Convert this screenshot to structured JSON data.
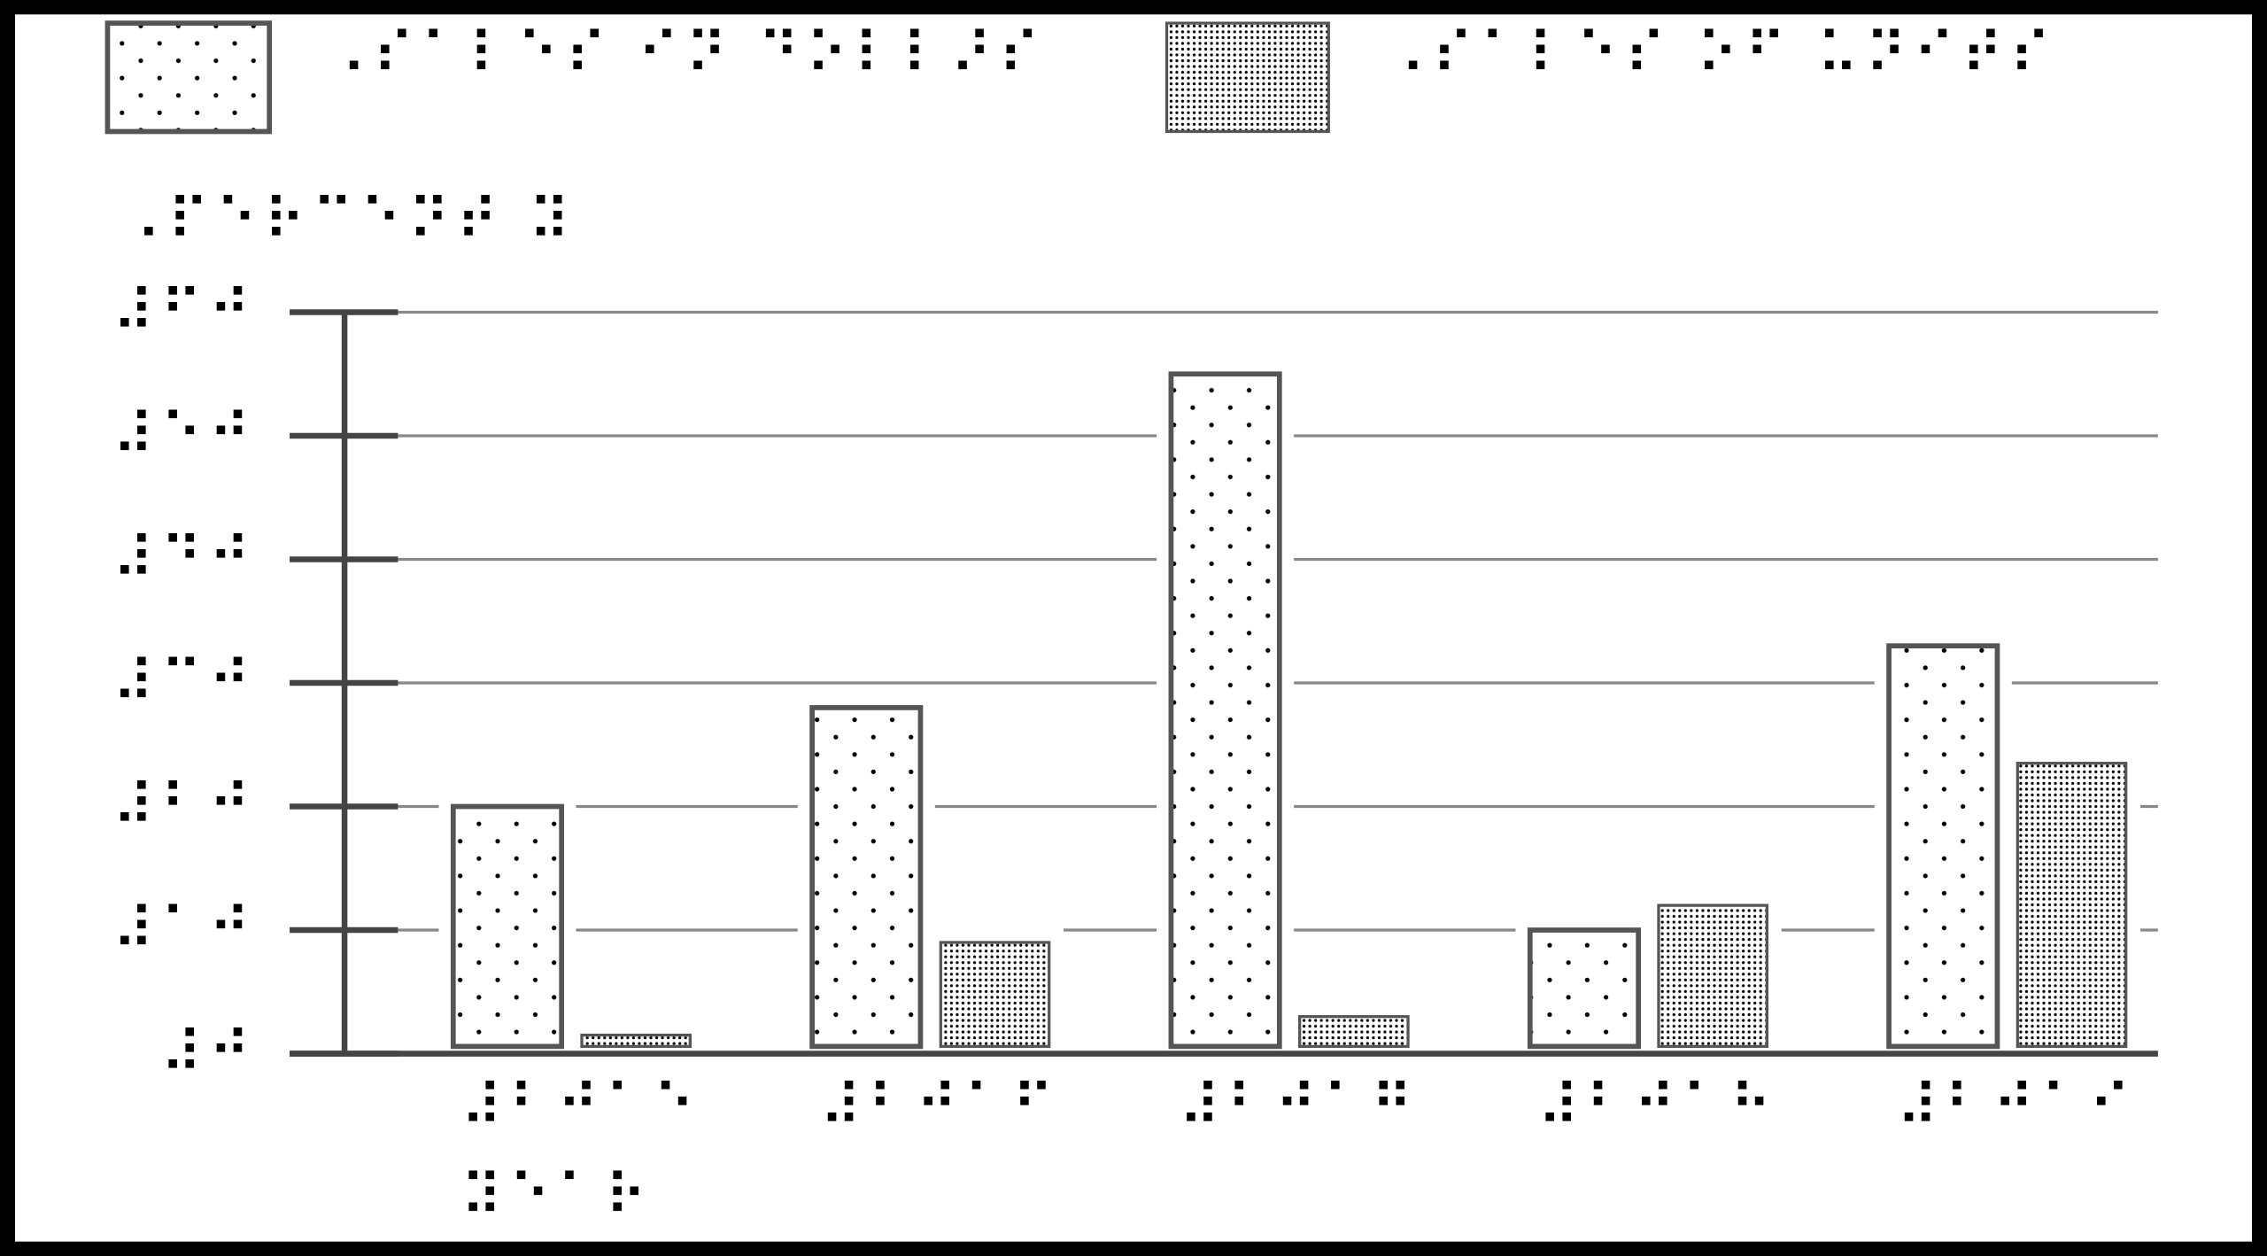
{
  "chart_data": {
    "type": "bar",
    "y_label": "⠠⠏⠑⠗⠉⠑⠝⠞ ⠽",
    "categories": [
      "⠼⠃⠚⠁⠑ ⠽⠑⠁⠗",
      "⠼⠃⠚⠁⠋",
      "⠼⠃⠚⠁⠛",
      "⠼⠃⠚⠁⠓",
      "⠼⠃⠚⠁⠊"
    ],
    "series": [
      {
        "name": "⠠⠎⠁⠇⠑⠎ ⠊⠝ ⠙⠕⠇⠇⠜⠎",
        "color": "#ffffff",
        "pattern": "sparse-dots",
        "values": [
          20,
          28,
          55,
          10,
          33
        ]
      },
      {
        "name": "⠠⠎⠁⠇⠑⠎ ⠕⠋ ⠥⠝⠊⠞⠎",
        "color": "#ffffff",
        "pattern": "dense-dots",
        "values": [
          1.5,
          9,
          3,
          12,
          23.5
        ]
      }
    ],
    "ylim": [
      0,
      60
    ],
    "yticks": [
      {
        "value": 0,
        "label": "⠼⠚"
      },
      {
        "value": 10,
        "label": "⠼⠁⠚"
      },
      {
        "value": 20,
        "label": "⠼⠃⠚"
      },
      {
        "value": 30,
        "label": "⠼⠉⠚"
      },
      {
        "value": 40,
        "label": "⠼⠙⠚"
      },
      {
        "value": 50,
        "label": "⠼⠑⠚"
      },
      {
        "value": 60,
        "label": "⠼⠋⠚"
      }
    ],
    "grid": true
  }
}
